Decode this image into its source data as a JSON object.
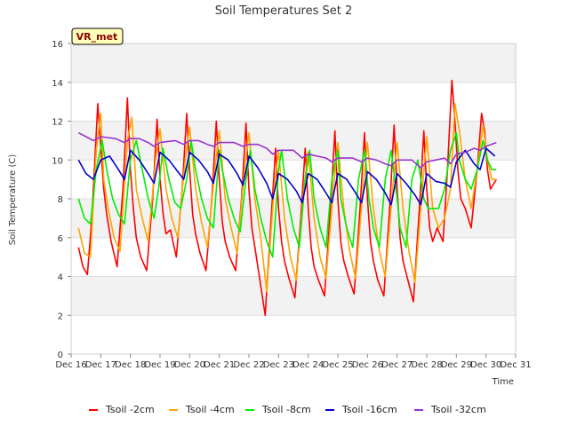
{
  "chart_data": {
    "type": "line",
    "title": "Soil Temperatures Set 2",
    "xlabel": "Time",
    "ylabel": "Soil Temperature (C)",
    "site_badge": "VR_met",
    "xlim": [
      16,
      31
    ],
    "ylim": [
      0,
      16
    ],
    "x_ticks": [
      {
        "x": 16,
        "label": "Dec 16"
      },
      {
        "x": 17,
        "label": "Dec 17"
      },
      {
        "x": 18,
        "label": "Dec 18"
      },
      {
        "x": 19,
        "label": "Dec 19"
      },
      {
        "x": 20,
        "label": "Dec 20"
      },
      {
        "x": 21,
        "label": "Dec 21"
      },
      {
        "x": 22,
        "label": "Dec 22"
      },
      {
        "x": 23,
        "label": "Dec 23"
      },
      {
        "x": 24,
        "label": "Dec 24"
      },
      {
        "x": 25,
        "label": "Dec 25"
      },
      {
        "x": 26,
        "label": "Dec 26"
      },
      {
        "x": 27,
        "label": "Dec 27"
      },
      {
        "x": 28,
        "label": "Dec 28"
      },
      {
        "x": 29,
        "label": "Dec 29"
      },
      {
        "x": 30,
        "label": "Dec 30"
      },
      {
        "x": 31,
        "label": "Dec 31"
      }
    ],
    "y_ticks": [
      0,
      2,
      4,
      6,
      8,
      10,
      12,
      14,
      16
    ],
    "grid": true,
    "legend_position": "bottom",
    "series": [
      {
        "name": "Tsoil -2cm",
        "color": "#ff0000",
        "x": [
          16.25,
          16.4,
          16.55,
          16.7,
          16.9,
          17.1,
          17.2,
          17.35,
          17.55,
          17.75,
          17.9,
          18.0,
          18.1,
          18.2,
          18.35,
          18.55,
          18.75,
          18.9,
          19.0,
          19.1,
          19.2,
          19.35,
          19.55,
          19.75,
          19.9,
          20.0,
          20.1,
          20.2,
          20.35,
          20.55,
          20.75,
          20.9,
          21.0,
          21.1,
          21.2,
          21.35,
          21.55,
          21.75,
          21.9,
          22.0,
          22.1,
          22.2,
          22.35,
          22.55,
          22.75,
          22.9,
          23.0,
          23.1,
          23.2,
          23.35,
          23.55,
          23.75,
          23.9,
          24.0,
          24.1,
          24.2,
          24.35,
          24.55,
          24.75,
          24.9,
          25.0,
          25.1,
          25.2,
          25.35,
          25.55,
          25.75,
          25.9,
          26.0,
          26.1,
          26.2,
          26.35,
          26.55,
          26.75,
          26.9,
          27.0,
          27.1,
          27.2,
          27.35,
          27.55,
          27.75,
          27.9,
          28.0,
          28.1,
          28.2,
          28.35,
          28.55,
          28.7,
          28.85,
          28.95,
          29.05,
          29.15,
          29.3,
          29.5,
          29.7,
          29.85,
          29.95,
          30.05,
          30.15,
          30.35
        ],
        "y": [
          5.5,
          4.5,
          4.1,
          7.0,
          12.9,
          8.5,
          7.2,
          5.8,
          4.5,
          8.5,
          13.2,
          9.5,
          7.5,
          6.0,
          5.0,
          4.3,
          8.0,
          12.1,
          9.0,
          7.3,
          6.2,
          6.4,
          5.0,
          8.5,
          12.4,
          9.5,
          7.2,
          6.2,
          5.2,
          4.3,
          8.0,
          12.0,
          9.0,
          6.8,
          5.8,
          5.0,
          4.3,
          8.0,
          11.9,
          8.5,
          6.5,
          5.5,
          4.0,
          2.0,
          7.0,
          10.6,
          7.5,
          5.8,
          4.8,
          3.9,
          2.9,
          7.0,
          10.6,
          7.5,
          5.5,
          4.5,
          3.8,
          3.0,
          7.5,
          11.5,
          8.0,
          5.8,
          4.8,
          4.0,
          3.1,
          7.5,
          11.4,
          8.0,
          5.8,
          4.8,
          3.8,
          3.0,
          7.5,
          11.8,
          8.5,
          6.0,
          4.8,
          3.9,
          2.7,
          7.5,
          11.5,
          8.5,
          6.5,
          5.8,
          6.5,
          5.8,
          9.5,
          14.1,
          12.0,
          9.5,
          8.0,
          7.5,
          6.5,
          9.5,
          12.4,
          11.5,
          9.5,
          8.5,
          9.0
        ]
      },
      {
        "name": "Tsoil -4cm",
        "color": "#ffa500",
        "x": [
          16.25,
          16.45,
          16.65,
          16.85,
          17.0,
          17.1,
          17.25,
          17.45,
          17.65,
          17.9,
          18.05,
          18.2,
          18.4,
          18.6,
          18.85,
          19.0,
          19.2,
          19.4,
          19.6,
          19.85,
          20.0,
          20.2,
          20.4,
          20.6,
          20.85,
          21.0,
          21.2,
          21.4,
          21.6,
          21.85,
          22.0,
          22.2,
          22.4,
          22.6,
          22.85,
          23.0,
          23.2,
          23.4,
          23.6,
          23.85,
          24.0,
          24.2,
          24.4,
          24.6,
          24.85,
          25.0,
          25.2,
          25.4,
          25.6,
          25.85,
          26.0,
          26.2,
          26.4,
          26.6,
          26.85,
          27.0,
          27.2,
          27.4,
          27.6,
          27.85,
          28.0,
          28.2,
          28.4,
          28.6,
          28.8,
          28.95,
          29.1,
          29.3,
          29.5,
          29.7,
          29.9,
          30.05,
          30.2,
          30.35
        ],
        "y": [
          6.5,
          5.2,
          5.0,
          10.5,
          12.4,
          9.0,
          7.5,
          6.0,
          5.3,
          11.0,
          12.2,
          8.5,
          7.0,
          5.8,
          10.0,
          11.6,
          8.5,
          7.0,
          6.0,
          10.0,
          11.7,
          8.5,
          6.8,
          5.5,
          9.5,
          11.5,
          8.0,
          6.5,
          5.2,
          9.5,
          11.4,
          8.0,
          6.0,
          3.2,
          8.5,
          10.5,
          7.0,
          5.0,
          3.8,
          8.5,
          10.4,
          7.0,
          5.0,
          3.9,
          8.5,
          10.9,
          7.5,
          5.3,
          3.9,
          8.5,
          10.9,
          7.5,
          5.3,
          4.0,
          8.5,
          10.9,
          7.5,
          5.3,
          3.7,
          8.5,
          11.2,
          7.5,
          6.5,
          7.0,
          8.5,
          12.9,
          11.5,
          9.0,
          7.5,
          9.5,
          11.8,
          10.0,
          9.0,
          9.0
        ]
      },
      {
        "name": "Tsoil -8cm",
        "color": "#00ee00",
        "x": [
          16.25,
          16.45,
          16.65,
          16.85,
          17.05,
          17.2,
          17.4,
          17.6,
          17.8,
          18.0,
          18.2,
          18.4,
          18.6,
          18.8,
          18.95,
          19.1,
          19.3,
          19.5,
          19.7,
          19.9,
          20.05,
          20.2,
          20.4,
          20.6,
          20.8,
          21.0,
          21.1,
          21.3,
          21.5,
          21.7,
          21.9,
          22.05,
          22.2,
          22.4,
          22.6,
          22.8,
          23.0,
          23.1,
          23.3,
          23.5,
          23.7,
          23.9,
          24.05,
          24.2,
          24.4,
          24.6,
          24.8,
          25.0,
          25.1,
          25.3,
          25.5,
          25.7,
          25.9,
          26.05,
          26.2,
          26.4,
          26.6,
          26.8,
          27.0,
          27.1,
          27.3,
          27.5,
          27.7,
          27.9,
          28.05,
          28.2,
          28.4,
          28.6,
          28.8,
          29.0,
          29.1,
          29.3,
          29.5,
          29.7,
          29.9,
          30.05,
          30.2,
          30.35
        ],
        "y": [
          8.0,
          7.0,
          6.7,
          9.5,
          11.0,
          9.5,
          8.0,
          7.2,
          6.7,
          10.0,
          11.0,
          9.5,
          8.0,
          7.0,
          8.5,
          10.6,
          9.0,
          7.8,
          7.5,
          9.0,
          11.0,
          9.5,
          8.0,
          7.0,
          6.5,
          10.5,
          9.5,
          8.0,
          7.0,
          6.3,
          9.0,
          10.5,
          8.5,
          7.0,
          5.8,
          5.0,
          9.5,
          10.5,
          8.0,
          6.5,
          5.5,
          9.0,
          10.5,
          8.0,
          6.5,
          5.5,
          9.0,
          10.5,
          8.0,
          6.5,
          5.5,
          9.0,
          10.5,
          8.0,
          6.5,
          5.5,
          9.0,
          10.5,
          8.0,
          6.5,
          5.5,
          9.0,
          10.0,
          8.0,
          7.5,
          7.5,
          7.5,
          8.5,
          10.5,
          11.4,
          10.0,
          9.0,
          8.5,
          9.5,
          11.0,
          10.0,
          9.5,
          9.5
        ]
      },
      {
        "name": "Tsoil -16cm",
        "color": "#0000cc",
        "x": [
          16.25,
          16.5,
          16.75,
          17.0,
          17.3,
          17.6,
          17.8,
          18.0,
          18.3,
          18.6,
          18.8,
          19.0,
          19.3,
          19.6,
          19.8,
          20.0,
          20.3,
          20.6,
          20.8,
          21.0,
          21.3,
          21.6,
          21.8,
          22.0,
          22.3,
          22.6,
          22.8,
          23.0,
          23.3,
          23.6,
          23.8,
          24.0,
          24.3,
          24.6,
          24.8,
          25.0,
          25.3,
          25.6,
          25.8,
          26.0,
          26.3,
          26.6,
          26.8,
          27.0,
          27.3,
          27.6,
          27.8,
          28.0,
          28.3,
          28.6,
          28.8,
          29.0,
          29.3,
          29.6,
          29.8,
          30.0,
          30.3
        ],
        "y": [
          10.0,
          9.3,
          9.0,
          10.0,
          10.2,
          9.5,
          9.0,
          10.5,
          10.0,
          9.3,
          8.8,
          10.4,
          10.0,
          9.4,
          9.0,
          10.4,
          10.0,
          9.4,
          8.8,
          10.3,
          10.0,
          9.3,
          8.7,
          10.2,
          9.6,
          8.8,
          8.0,
          9.3,
          9.0,
          8.4,
          7.8,
          9.3,
          9.0,
          8.3,
          7.8,
          9.3,
          9.0,
          8.3,
          7.8,
          9.4,
          9.0,
          8.3,
          7.7,
          9.3,
          8.8,
          8.2,
          7.7,
          9.3,
          8.9,
          8.8,
          8.6,
          9.9,
          10.5,
          9.8,
          9.5,
          10.6,
          10.2
        ]
      },
      {
        "name": "Tsoil -32cm",
        "color": "#9933cc",
        "x": [
          16.25,
          16.5,
          16.75,
          17.0,
          17.5,
          17.8,
          18.0,
          18.3,
          18.6,
          18.8,
          19.0,
          19.5,
          19.8,
          20.0,
          20.3,
          20.6,
          20.8,
          21.0,
          21.5,
          21.8,
          22.0,
          22.3,
          22.6,
          22.8,
          23.0,
          23.5,
          23.8,
          24.0,
          24.3,
          24.6,
          24.8,
          25.0,
          25.5,
          25.8,
          26.0,
          26.3,
          26.6,
          26.8,
          27.0,
          27.5,
          27.8,
          28.0,
          28.3,
          28.6,
          28.8,
          29.0,
          29.3,
          29.6,
          29.8,
          30.0,
          30.35
        ],
        "y": [
          11.4,
          11.2,
          11.0,
          11.2,
          11.1,
          10.9,
          11.1,
          11.1,
          10.9,
          10.7,
          10.9,
          11.0,
          10.8,
          11.0,
          11.0,
          10.8,
          10.7,
          10.9,
          10.9,
          10.7,
          10.8,
          10.8,
          10.6,
          10.3,
          10.5,
          10.5,
          10.1,
          10.3,
          10.2,
          10.1,
          9.9,
          10.1,
          10.1,
          9.9,
          10.1,
          10.0,
          9.8,
          9.7,
          10.0,
          10.0,
          9.6,
          9.9,
          10.0,
          10.1,
          9.8,
          10.3,
          10.4,
          10.6,
          10.5,
          10.7,
          10.9
        ]
      }
    ]
  }
}
